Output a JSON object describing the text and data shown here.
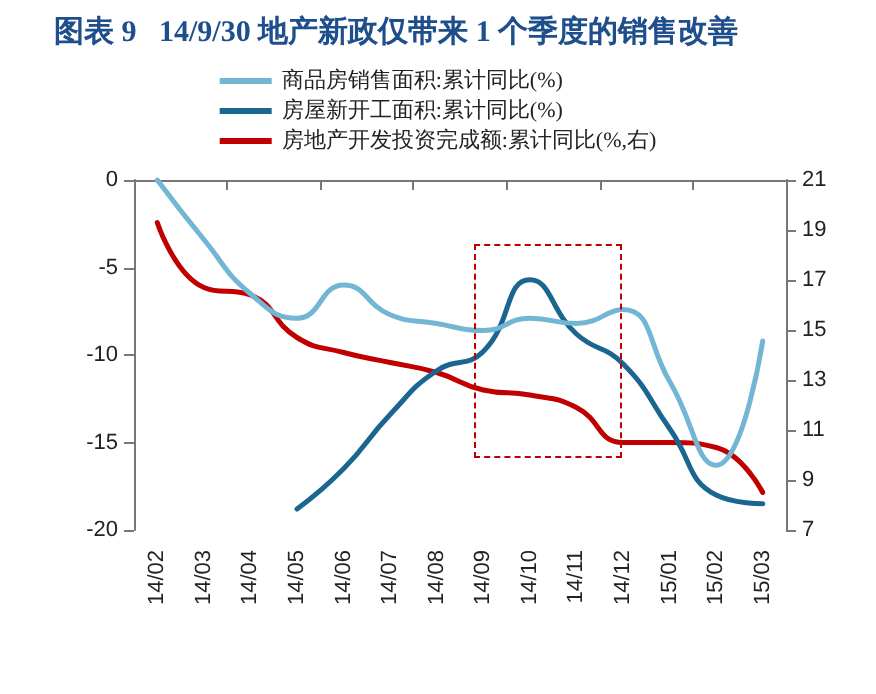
{
  "chart_data": {
    "type": "line",
    "title": "图表 9   14/9/30 地产新政仅带来 1 个季度的销售改善",
    "categories": [
      "14/02",
      "14/03",
      "14/04",
      "14/05",
      "14/06",
      "14/07",
      "14/08",
      "14/09",
      "14/10",
      "14/11",
      "14/12",
      "15/01",
      "15/02",
      "15/03"
    ],
    "series": [
      {
        "name": "商品房销售面积:累计同比(%)",
        "color": "#72b6d3",
        "values": [
          0,
          -3.4,
          -6.5,
          -7.9,
          -6.0,
          -7.7,
          -8.2,
          -8.6,
          -7.9,
          -8.2,
          -7.4,
          -11.5,
          -16.3,
          -9.2
        ]
      },
      {
        "name": "房屋新开工面积:累计同比(%)",
        "color": "#1b6690",
        "values": [
          null,
          null,
          null,
          -18.8,
          -16.5,
          -13.4,
          -10.9,
          -9.8,
          -5.7,
          -8.8,
          -10.5,
          -14.2,
          -18.0,
          -18.5
        ]
      },
      {
        "name": "房地产开发投资完成额:累计同比(%,右)",
        "color": "#c00000",
        "axis": "y2",
        "values": [
          19.3,
          16.7,
          16.4,
          14.7,
          14.1,
          13.7,
          13.3,
          12.6,
          12.4,
          11.9,
          10.5,
          10.5,
          10.3,
          8.5
        ]
      }
    ],
    "ylim": [
      -20,
      0
    ],
    "yticks": [
      -20,
      -15,
      -10,
      -5,
      0
    ],
    "y2lim": [
      7,
      21
    ],
    "y2ticks": [
      7,
      9,
      11,
      13,
      15,
      17,
      19,
      21
    ],
    "legend": "top",
    "grid": false,
    "marker": "none",
    "line_style": "solid"
  }
}
